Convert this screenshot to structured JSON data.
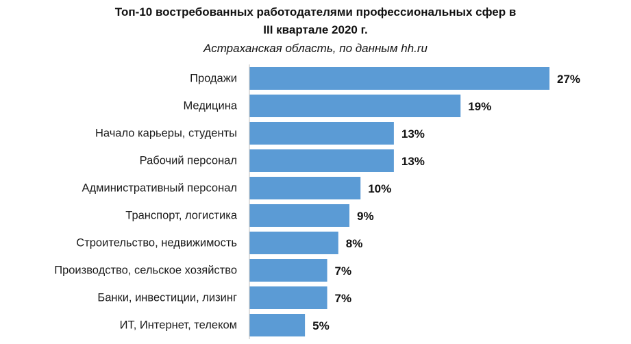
{
  "chart_data": {
    "type": "bar",
    "orientation": "horizontal",
    "title_line1": "Топ-10 востребованных работодателями профессиональных сфер в",
    "title_line2": "III квартале 2020 г.",
    "subtitle": "Астраханская область, по данным hh.ru",
    "categories": [
      "Продажи",
      "Медицина",
      "Начало карьеры, студенты",
      "Рабочий персонал",
      "Административный персонал",
      "Транспорт, логистика",
      "Строительство, недвижимость",
      "Производство, сельское хозяйство",
      "Банки, инвестиции, лизинг",
      "ИТ, Интернет, телеком"
    ],
    "values": [
      27,
      19,
      13,
      13,
      10,
      9,
      8,
      7,
      7,
      5
    ],
    "value_labels": [
      "27%",
      "19%",
      "13%",
      "13%",
      "10%",
      "9%",
      "8%",
      "7%",
      "7%",
      "5%"
    ],
    "xlim": [
      0,
      27
    ],
    "bar_color": "#5b9bd5",
    "axis_color": "#bfbfbf",
    "grid": false,
    "legend": "none"
  }
}
